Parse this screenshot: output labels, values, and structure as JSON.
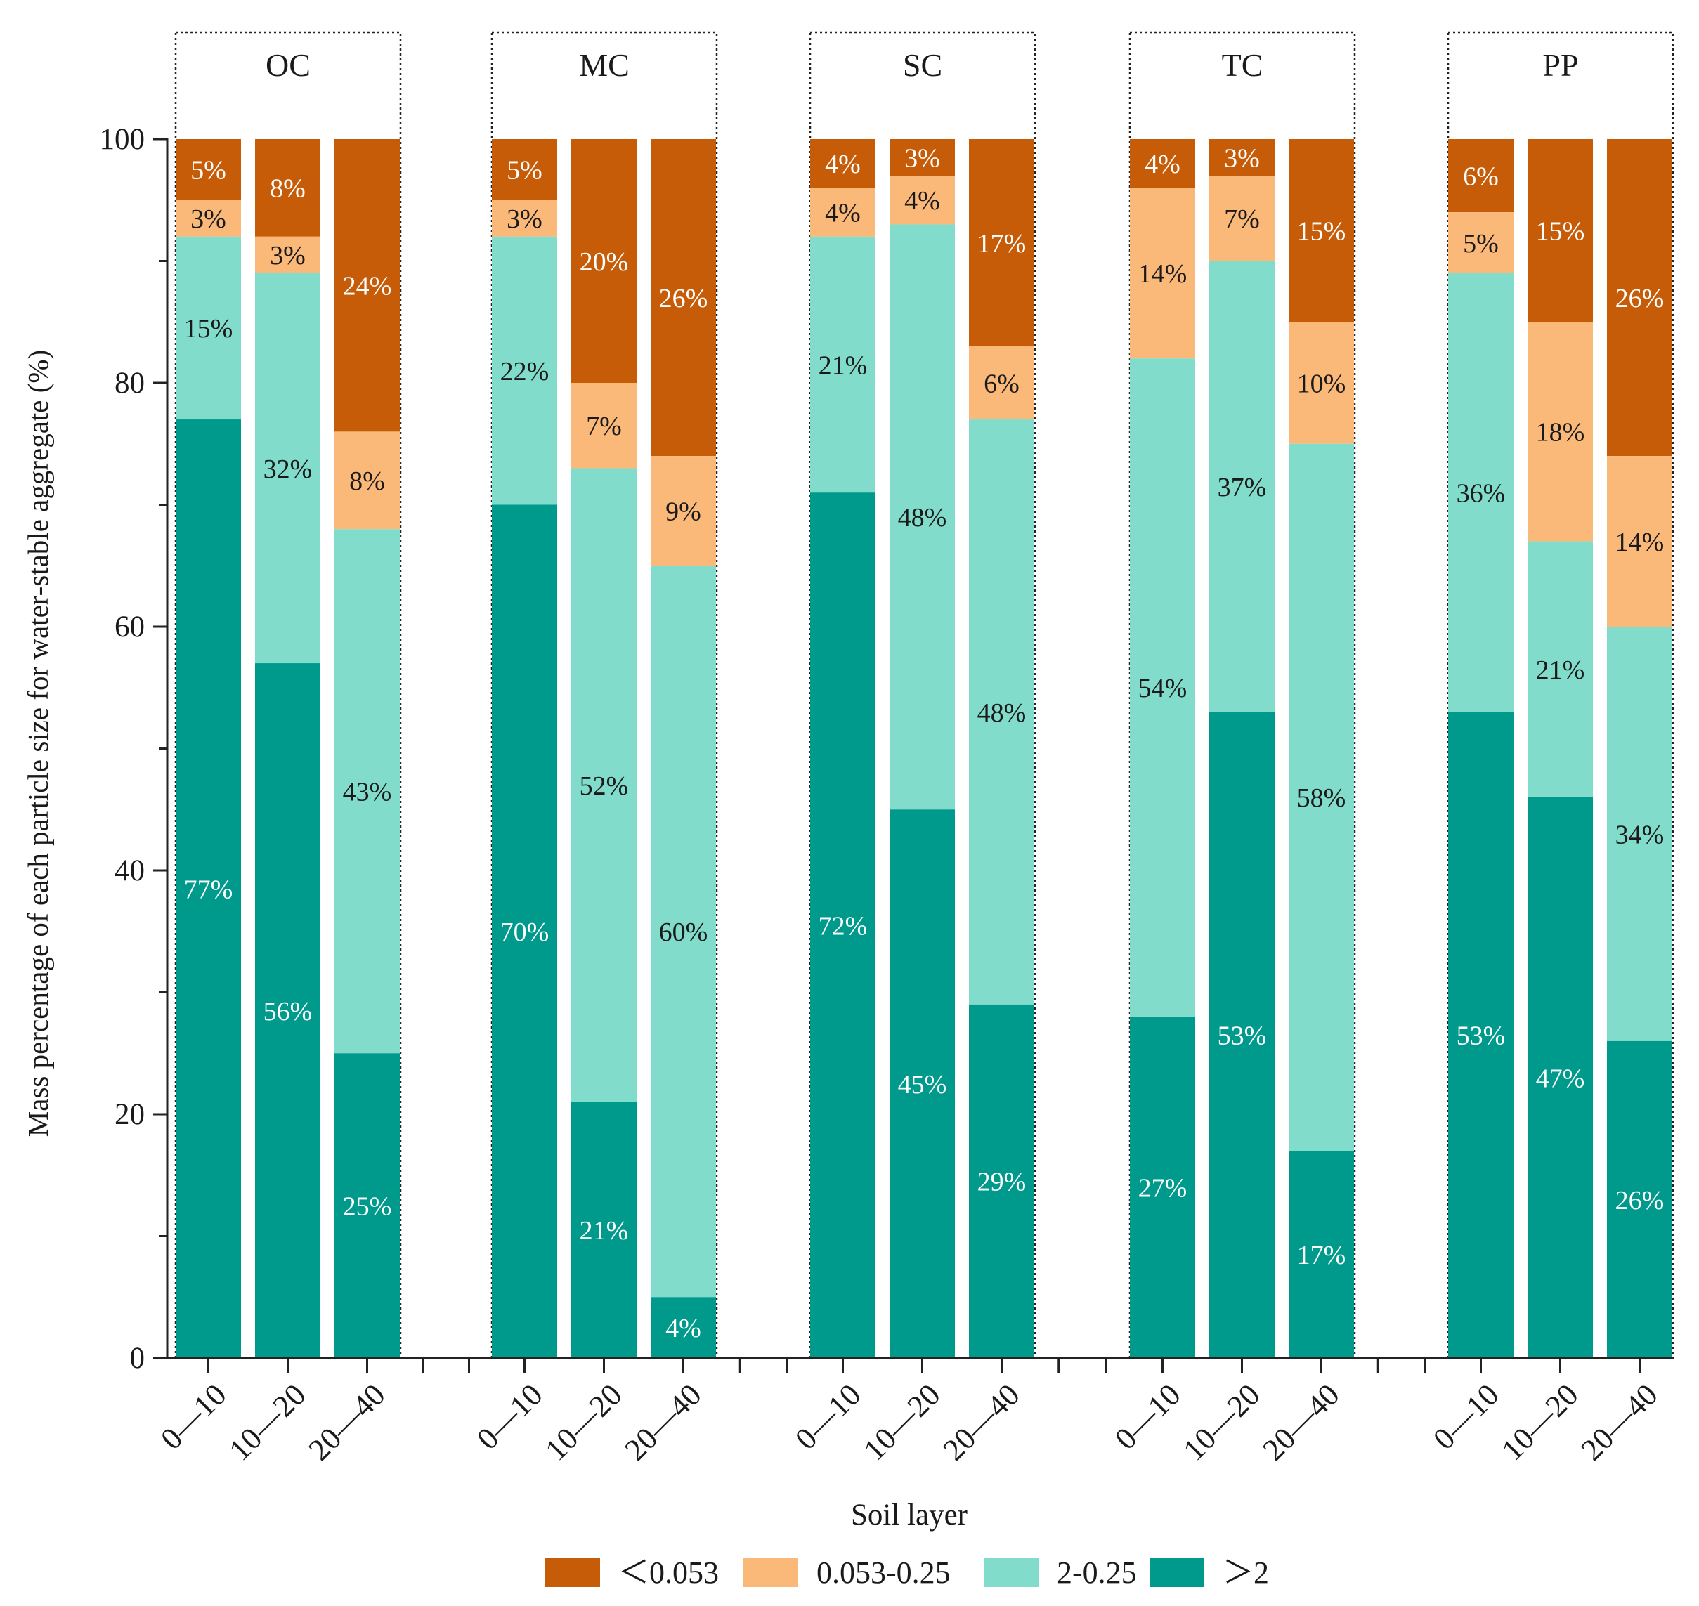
{
  "chart_data": {
    "type": "bar",
    "stacked": true,
    "title": "",
    "xlabel": "Soil layer",
    "ylabel": "Mass percentage of each particle size for water-stable aggregate (%)",
    "ylim": [
      0,
      100
    ],
    "yticks": [
      "0",
      "20",
      "40",
      "60",
      "80",
      "100"
    ],
    "grid": false,
    "legend_position": "bottom",
    "layers": [
      "0—10",
      "10—20",
      "20—40"
    ],
    "series": [
      {
        "name": "＜0.053",
        "color": "#c65c08",
        "text_color": "#ffffff"
      },
      {
        "name": "0.053-0.25",
        "color": "#fbb979",
        "text_color": "#1a1a1a"
      },
      {
        "name": "2-0.25",
        "color": "#81dccb",
        "text_color": "#1a1a1a"
      },
      {
        "name": "＞2",
        "color": "#009a8c",
        "text_color": "#ffffff"
      }
    ],
    "groups": [
      {
        "name": "OC",
        "bars": [
          {
            "layer": "0—10",
            "values": [
              5,
              3,
              15,
              77
            ],
            "labels": [
              "5%",
              "3%",
              "15%",
              "77%"
            ]
          },
          {
            "layer": "10—20",
            "values": [
              8,
              3,
              32,
              56
            ],
            "labels": [
              "8%",
              "3%",
              "32%",
              "56%"
            ]
          },
          {
            "layer": "20—40",
            "values": [
              24,
              8,
              43,
              25
            ],
            "labels": [
              "24%",
              "8%",
              "43%",
              "25%"
            ]
          }
        ]
      },
      {
        "name": "MC",
        "bars": [
          {
            "layer": "0—10",
            "values": [
              5,
              3,
              22,
              70
            ],
            "labels": [
              "5%",
              "3%",
              "22%",
              "70%"
            ]
          },
          {
            "layer": "10—20",
            "values": [
              20,
              7,
              52,
              21
            ],
            "labels": [
              "20%",
              "7%",
              "52%",
              "21%"
            ]
          },
          {
            "layer": "20—40",
            "values": [
              26,
              9,
              60,
              4
            ],
            "labels": [
              "26%",
              "9%",
              "60%",
              "4%"
            ]
          }
        ]
      },
      {
        "name": "SC",
        "bars": [
          {
            "layer": "0—10",
            "values": [
              4,
              4,
              21,
              72
            ],
            "labels": [
              "4%",
              "4%",
              "21%",
              "72%"
            ]
          },
          {
            "layer": "10—20",
            "values": [
              3,
              4,
              48,
              45
            ],
            "labels": [
              "3%",
              "4%",
              "48%",
              "45%"
            ]
          },
          {
            "layer": "20—40",
            "values": [
              17,
              6,
              48,
              29
            ],
            "labels": [
              "17%",
              "6%",
              "48%",
              "29%"
            ]
          }
        ]
      },
      {
        "name": "TC",
        "bars": [
          {
            "layer": "0—10",
            "values": [
              4,
              14,
              54,
              27
            ],
            "labels": [
              "4%",
              "14%",
              "54%",
              "27%"
            ]
          },
          {
            "layer": "10—20",
            "values": [
              3,
              7,
              37,
              53
            ],
            "labels": [
              "3%",
              "7%",
              "37%",
              "53%"
            ]
          },
          {
            "layer": "20—40",
            "values": [
              15,
              10,
              58,
              17
            ],
            "labels": [
              "15%",
              "10%",
              "58%",
              "17%"
            ]
          }
        ]
      },
      {
        "name": "PP",
        "bars": [
          {
            "layer": "0—10",
            "values": [
              6,
              5,
              36,
              53
            ],
            "labels": [
              "6%",
              "5%",
              "36%",
              "53%"
            ]
          },
          {
            "layer": "10—20",
            "values": [
              15,
              18,
              21,
              47
            ],
            "labels": [
              "15%",
              "18%",
              "21%",
              "47%"
            ]
          },
          {
            "layer": "20—40",
            "values": [
              26,
              14,
              34,
              26
            ],
            "labels": [
              "26%",
              "14%",
              "34%",
              "26%"
            ]
          }
        ]
      }
    ]
  }
}
